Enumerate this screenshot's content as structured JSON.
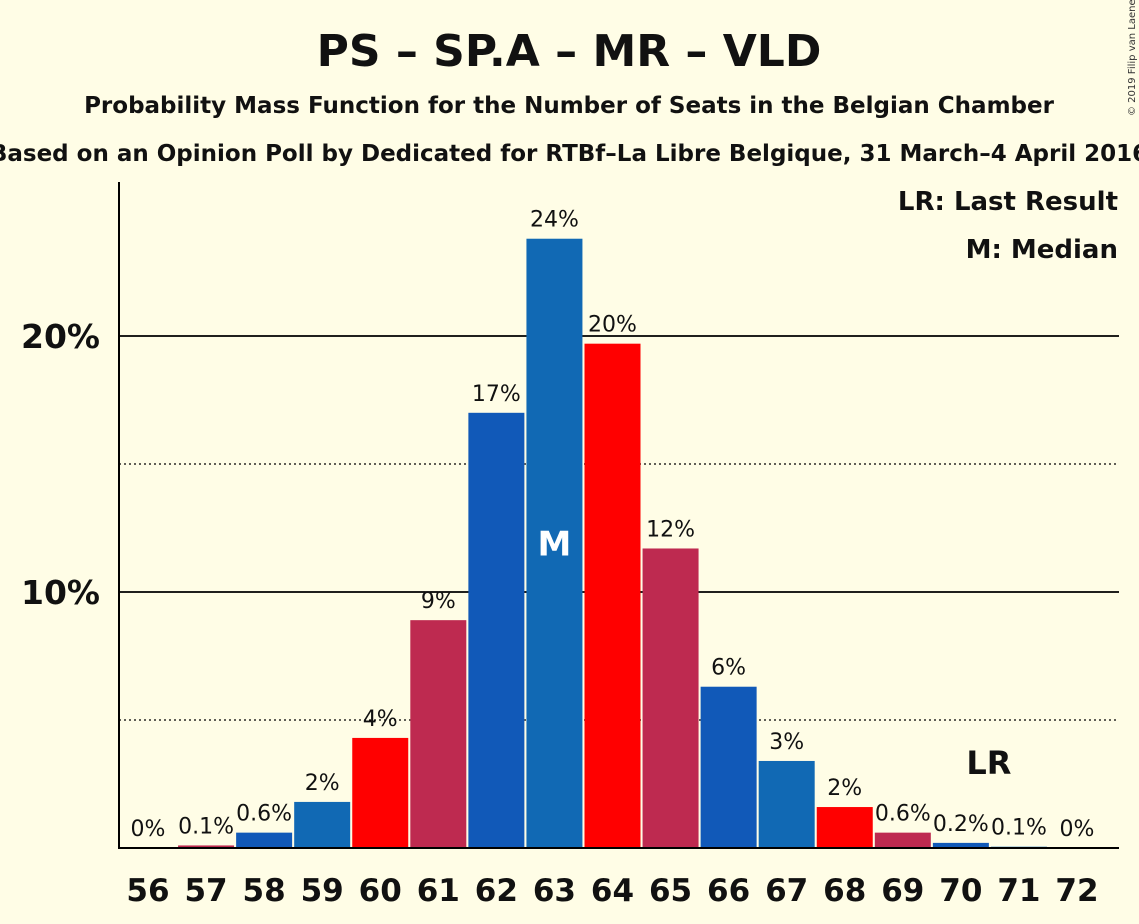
{
  "chart_data": {
    "type": "bar",
    "title": "PS – SP.A – MR – VLD",
    "subtitle": "Probability Mass Function for the Number of Seats in the Belgian Chamber",
    "subtitle2": "Based on an Opinion Poll by Dedicated for RTBf–La Libre Belgique, 31 March–4 April 2016",
    "copyright": "© 2019 Filip van Laenen",
    "categories": [
      "56",
      "57",
      "58",
      "59",
      "60",
      "61",
      "62",
      "63",
      "64",
      "65",
      "66",
      "67",
      "68",
      "69",
      "70",
      "71",
      "72"
    ],
    "values": [
      0,
      0.1,
      0.6,
      1.8,
      4.3,
      8.9,
      17.0,
      23.8,
      19.7,
      11.7,
      6.3,
      3.4,
      1.6,
      0.6,
      0.2,
      0.05,
      0
    ],
    "labels": [
      "0%",
      "0.1%",
      "0.6%",
      "2%",
      "4%",
      "9%",
      "17%",
      "24%",
      "20%",
      "12%",
      "6%",
      "3%",
      "2%",
      "0.6%",
      "0.2%",
      "0.1%",
      "0%"
    ],
    "colors": [
      "#BE2A50",
      "#BE2A50",
      "#1159B8",
      "#1169B4",
      "#FF0000",
      "#BE2A50",
      "#1159B8",
      "#1169B4",
      "#FF0000",
      "#BE2A50",
      "#1159B8",
      "#1169B4",
      "#FF0000",
      "#BE2A50",
      "#1159B8",
      "#1169B4",
      "#FF0000"
    ],
    "ylim": [
      0,
      26
    ],
    "yticks": [
      {
        "value": 10,
        "label": "10%"
      },
      {
        "value": 20,
        "label": "20%"
      }
    ],
    "dotted_gridlines": [
      5,
      15
    ],
    "median_category": "63",
    "median_marker": "M",
    "last_result_category": "70",
    "last_result_marker": "LR",
    "legend": [
      "LR: Last Result",
      "M: Median"
    ],
    "legend_position": "top-right"
  }
}
